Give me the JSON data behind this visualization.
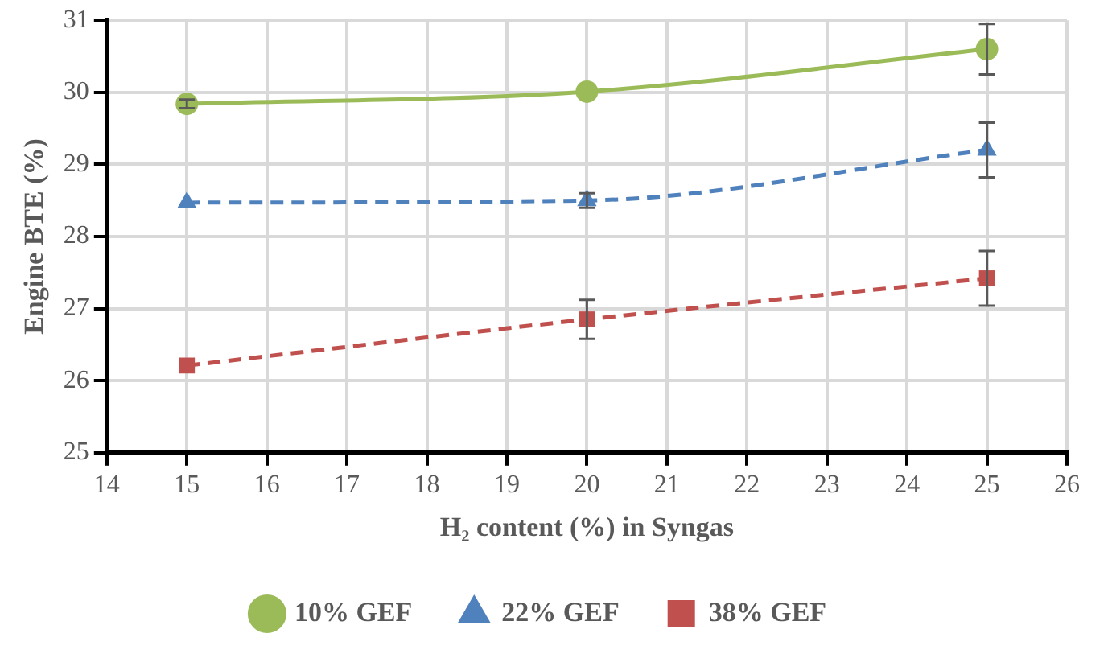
{
  "chart_data": {
    "type": "line",
    "xlabel": "H₂ content (%) in Syngas",
    "ylabel": "Engine BTE (%)",
    "x": [
      15,
      20,
      25
    ],
    "series": [
      {
        "name": "10% GEF",
        "color": "#9bbb59",
        "values": [
          29.84,
          30.01,
          30.6
        ],
        "errors": [
          0.06,
          null,
          0.35
        ],
        "marker": "circle",
        "line_style": "solid"
      },
      {
        "name": "22% GEF",
        "color": "#4f81bd",
        "values": [
          28.47,
          28.5,
          29.2
        ],
        "errors": [
          null,
          0.1,
          0.38
        ],
        "marker": "triangle",
        "line_style": "dashed"
      },
      {
        "name": "38% GEF",
        "color": "#c0504d",
        "values": [
          26.21,
          26.85,
          27.42
        ],
        "errors": [
          null,
          0.27,
          0.38
        ],
        "marker": "square",
        "line_style": "dashed"
      }
    ],
    "xlim": [
      14,
      26
    ],
    "xticks": [
      14,
      15,
      16,
      17,
      18,
      19,
      20,
      21,
      22,
      23,
      24,
      25,
      26
    ],
    "ylim": [
      25,
      31
    ],
    "yticks": [
      25,
      26,
      27,
      28,
      29,
      30,
      31
    ],
    "grid": true,
    "legend": "bottom"
  }
}
